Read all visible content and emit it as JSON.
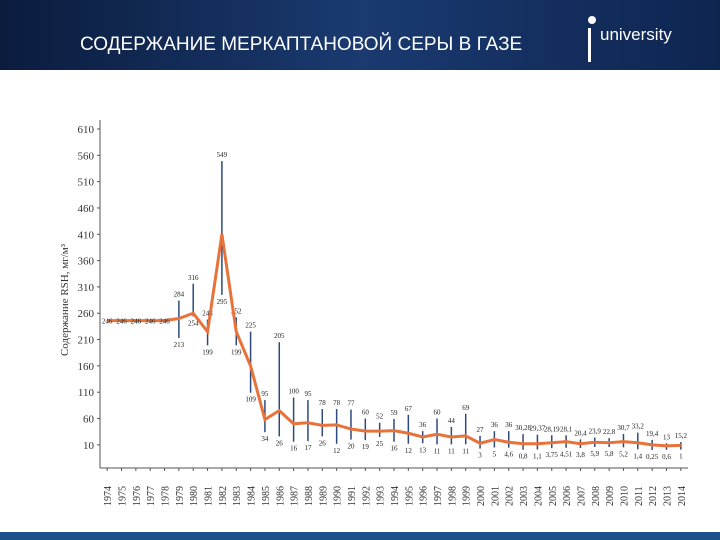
{
  "header": {
    "title": "СОДЕРЖАНИЕ МЕРКАПТАНОВОЙ СЕРЫ В ГАЗЕ",
    "logo": "university"
  },
  "chart_data": {
    "type": "range-line",
    "ylabel": "Содержание RSH, мг/м³",
    "categories": [
      "1974",
      "1975",
      "1976",
      "1977",
      "1978",
      "1979",
      "1980",
      "1981",
      "1982",
      "1983",
      "1984",
      "1985",
      "1986",
      "1987",
      "1988",
      "1989",
      "1990",
      "1991",
      "1992",
      "1993",
      "1994",
      "1995",
      "1996",
      "1997",
      "1998",
      "1999",
      "2000",
      "2001",
      "2002",
      "2003",
      "2004",
      "2005",
      "2006",
      "2007",
      "2008",
      "2009",
      "2010",
      "2011",
      "2012",
      "2013",
      "2014"
    ],
    "series": [
      {
        "color": "#2e4a7d",
        "values": [
          null,
          null,
          null,
          null,
          null,
          284,
          316,
          248,
          549,
          252,
          225,
          95,
          205,
          100,
          95,
          78,
          78,
          77,
          60,
          52,
          59,
          67,
          36,
          60,
          44,
          69,
          27,
          36,
          36,
          30.28,
          29.37,
          28.19,
          28.1,
          20.4,
          23.9,
          22.8,
          30.7,
          33.2,
          19.4,
          13,
          15.2
        ],
        "value_labels": [
          null,
          null,
          null,
          null,
          null,
          "284",
          "316",
          "248",
          "549",
          "252",
          "225",
          "95",
          "205",
          "100",
          "95",
          "78",
          "78",
          "77",
          "60",
          "52",
          "59",
          "67",
          "36",
          "60",
          "44",
          "69",
          "27",
          "36",
          "36",
          "30,28",
          "29,37",
          "28,19",
          "28,1",
          "20,4",
          "23,9",
          "22,8",
          "30,7",
          "33,2",
          "19,4",
          "13",
          "15,2"
        ]
      },
      {
        "color": "#2e4a7d",
        "values": [
          null,
          null,
          null,
          null,
          null,
          213,
          254,
          199,
          295,
          199,
          109,
          34,
          26,
          16,
          17,
          26,
          12,
          20,
          19,
          25,
          16,
          12,
          13,
          11,
          11,
          11,
          3,
          5,
          4.6,
          0.8,
          1.1,
          3.75,
          4.51,
          3.8,
          5.9,
          5.8,
          5.2,
          1.4,
          0.25,
          0.6,
          1
        ],
        "value_labels": [
          null,
          null,
          null,
          null,
          null,
          "213",
          "254",
          "199",
          "295",
          "199",
          "109",
          "34",
          "26",
          "16",
          "17",
          "26",
          "12",
          "20",
          "19",
          "25",
          "16",
          "12",
          "13",
          "11",
          "11",
          "11",
          "3",
          "5",
          "4,6",
          "0,8",
          "1,1",
          "3,75",
          "4,51",
          "3,8",
          "5,9",
          "5,8",
          "5,2",
          "1,4",
          "0,25",
          "0,6",
          "1"
        ]
      },
      {
        "color": "#e8733a",
        "values": [
          246,
          246,
          246,
          246,
          246,
          250,
          260,
          225,
          410,
          225,
          160,
          58,
          75,
          50,
          52,
          47,
          48,
          40,
          36,
          36,
          37,
          32,
          25,
          30,
          25,
          27,
          13,
          20,
          15,
          12,
          12,
          14,
          16,
          12,
          15,
          14,
          16,
          14,
          10,
          8,
          9
        ],
        "value_labels": [
          "246",
          "246",
          "246",
          "246",
          "246",
          null,
          null,
          null,
          null,
          null,
          null,
          null,
          null,
          null,
          null,
          null,
          null,
          null,
          null,
          null,
          null,
          null,
          null,
          null,
          null,
          null,
          null,
          null,
          null,
          null,
          null,
          null,
          null,
          null,
          null,
          null,
          null,
          null,
          null,
          null,
          null
        ]
      }
    ],
    "ylim": [
      -34,
      610
    ],
    "yticks": [
      10,
      60,
      110,
      160,
      210,
      260,
      310,
      360,
      410,
      460,
      510,
      560,
      610
    ]
  }
}
